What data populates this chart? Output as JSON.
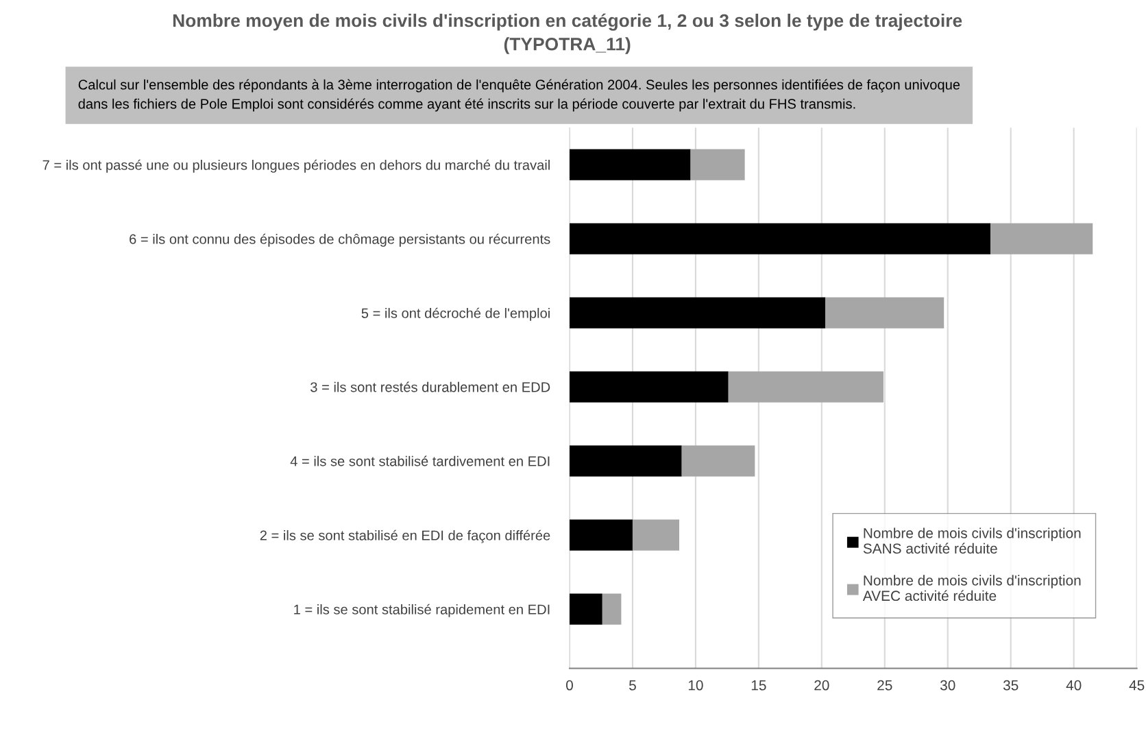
{
  "chart_data": {
    "type": "bar",
    "orientation": "horizontal",
    "stacked": true,
    "title": "Nombre moyen de mois civils d'inscription en catégorie 1, 2 ou 3 selon le type de trajectoire\n(TYPOTRA_11)",
    "annotations": [
      "Calcul sur l'ensemble des répondants à la 3ème interrogation de l'enquête Génération 2004. Seules les personnes identifiées de façon univoque\ndans les fichiers de Pole Emploi sont considérés comme ayant été inscrits sur la période couverte par l'extrait du FHS transmis."
    ],
    "categories": [
      "7 = ils ont passé une ou plusieurs longues périodes en dehors du marché du travail",
      "6 = ils ont connu des épisodes de chômage persistants ou récurrents",
      "5 = ils ont décroché de l'emploi",
      "3 = ils sont restés durablement en EDD",
      "4 = ils se sont stabilisé tardivement en EDI",
      "2 = ils se sont stabilisé en EDI de façon différée",
      "1 = ils se sont stabilisé rapidement en EDI"
    ],
    "series": [
      {
        "name": "Nombre de mois civils d'inscription\nSANS activité réduite",
        "color": "#000000",
        "values": [
          9.6,
          33.4,
          20.3,
          12.6,
          8.9,
          5.0,
          2.6
        ]
      },
      {
        "name": "Nombre de mois civils d'inscription\nAVEC activité réduite",
        "color": "#a6a6a6",
        "values": [
          4.3,
          8.1,
          9.4,
          12.3,
          5.8,
          3.7,
          1.5
        ]
      }
    ],
    "xlim": [
      0,
      45
    ],
    "xticks": [
      0,
      5,
      10,
      15,
      20,
      25,
      30,
      35,
      40,
      45
    ],
    "grid": "x",
    "legend": "bottom right"
  }
}
